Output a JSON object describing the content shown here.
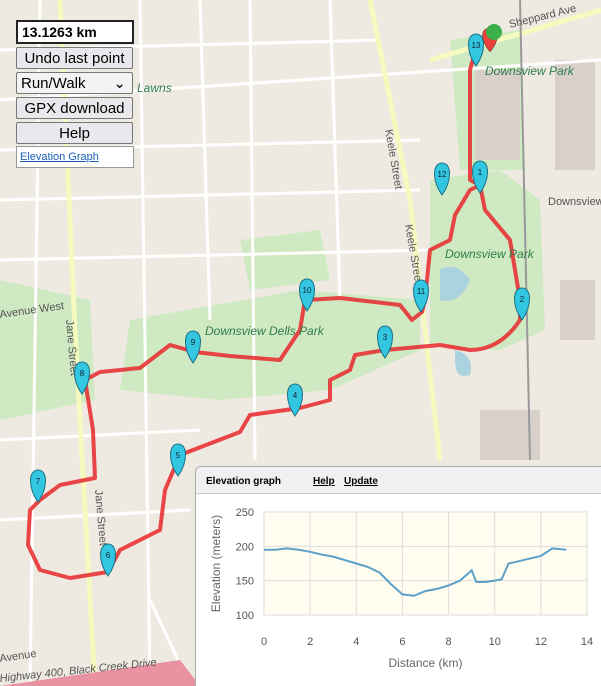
{
  "controls": {
    "distance": "13.1263 km",
    "undo": "Undo last point",
    "mode": "Run/Walk",
    "gpx": "GPX download",
    "help": "Help",
    "elevation_link": "Elevation Graph"
  },
  "map_labels": {
    "park": "Downsview Park",
    "park_top": "Downsview Park",
    "dells": "Downsview Dells Park",
    "keele": "Keele Street",
    "keele2": "Keele Street",
    "jane": "Jane Street",
    "jane2": "Jane Street",
    "sheppard": "Sheppard Ave",
    "sports": "Downsview Park Sports Centre",
    "highway": "Highway 400, Black Creek Drive",
    "avenue_west": "Avenue West",
    "avenue": "Avenue",
    "lawns": "Lawns"
  },
  "markers": [
    "1",
    "2",
    "3",
    "4",
    "5",
    "6",
    "7",
    "8",
    "9",
    "10",
    "11",
    "12",
    "13"
  ],
  "panel": {
    "title": "Elevation graph",
    "help": "Help",
    "update": "Update"
  },
  "chart_data": {
    "type": "line",
    "y_label": "Elevation (meters)",
    "x_label": "Distance (km)",
    "x": [
      0,
      0.5,
      1,
      1.5,
      2,
      2.5,
      3,
      3.5,
      4,
      4.5,
      5,
      5.5,
      6,
      6.5,
      7,
      7.5,
      8,
      8.5,
      9,
      9.2,
      9.6,
      10,
      10.3,
      10.6,
      11,
      11.5,
      12,
      12.5,
      13.1
    ],
    "values": [
      195,
      195,
      197,
      195,
      192,
      188,
      185,
      180,
      175,
      170,
      162,
      145,
      130,
      128,
      135,
      138,
      143,
      150,
      165,
      148,
      148,
      150,
      152,
      175,
      178,
      182,
      186,
      197,
      195
    ],
    "color": "#5aa0c8",
    "xlim": [
      0,
      14
    ],
    "ylim": [
      100,
      250
    ],
    "xticks": [
      0,
      2,
      4,
      6,
      8,
      10,
      12,
      14
    ],
    "yticks": [
      100,
      150,
      200,
      250
    ],
    "grid": true
  }
}
